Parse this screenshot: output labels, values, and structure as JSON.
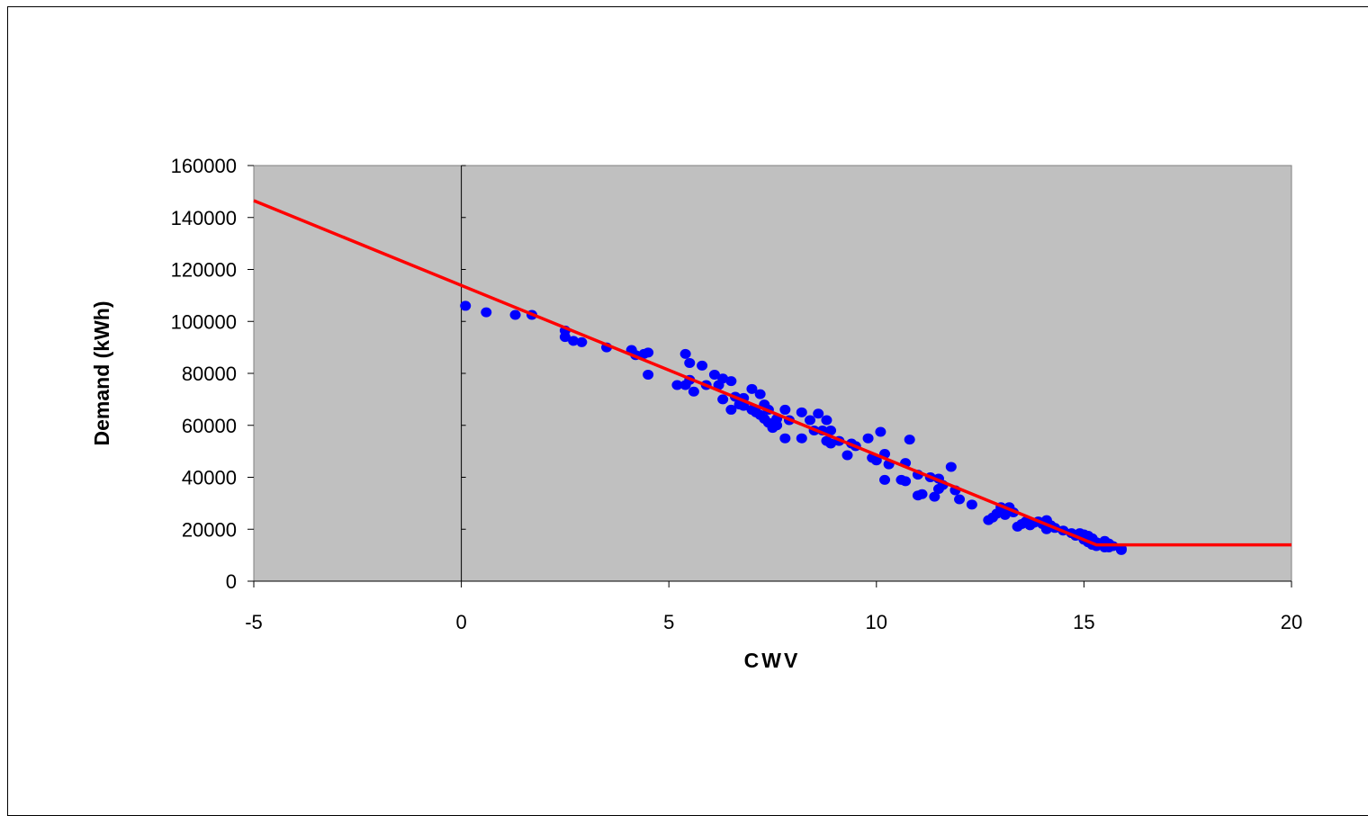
{
  "chart_data": {
    "type": "scatter",
    "xlabel": "CWV",
    "ylabel": "Demand (kWh)",
    "xlim": [
      -5,
      20
    ],
    "ylim": [
      0,
      160000
    ],
    "x_ticks": [
      -5,
      0,
      5,
      10,
      15,
      20
    ],
    "y_ticks": [
      0,
      20000,
      40000,
      60000,
      80000,
      100000,
      120000,
      140000,
      160000
    ],
    "grid": false,
    "legend": "none",
    "colors": {
      "plot_background": "#c0c0c0",
      "points": "#0000ff",
      "fit_line": "#ff0000"
    },
    "series": [
      {
        "type": "scatter",
        "points": [
          [
            0.1,
            106000
          ],
          [
            0.6,
            103500
          ],
          [
            1.3,
            102500
          ],
          [
            1.7,
            102500
          ],
          [
            2.5,
            94000
          ],
          [
            2.5,
            96500
          ],
          [
            2.7,
            92500
          ],
          [
            2.9,
            92000
          ],
          [
            3.5,
            90000
          ],
          [
            4.1,
            89000
          ],
          [
            4.2,
            87000
          ],
          [
            4.4,
            87500
          ],
          [
            4.5,
            88000
          ],
          [
            4.5,
            79500
          ],
          [
            5.2,
            75500
          ],
          [
            5.4,
            75500
          ],
          [
            5.4,
            87500
          ],
          [
            5.5,
            84000
          ],
          [
            5.5,
            77500
          ],
          [
            5.6,
            73000
          ],
          [
            5.8,
            83000
          ],
          [
            5.9,
            75500
          ],
          [
            6.1,
            79500
          ],
          [
            6.2,
            75500
          ],
          [
            6.3,
            70000
          ],
          [
            6.3,
            78000
          ],
          [
            6.5,
            77000
          ],
          [
            6.5,
            66000
          ],
          [
            6.6,
            71000
          ],
          [
            6.7,
            68000
          ],
          [
            6.8,
            70500
          ],
          [
            6.8,
            67500
          ],
          [
            7.0,
            74000
          ],
          [
            7.0,
            66000
          ],
          [
            7.1,
            65000
          ],
          [
            7.2,
            72000
          ],
          [
            7.2,
            64000
          ],
          [
            7.3,
            68000
          ],
          [
            7.3,
            62500
          ],
          [
            7.4,
            66000
          ],
          [
            7.4,
            61000
          ],
          [
            7.5,
            59000
          ],
          [
            7.6,
            62500
          ],
          [
            7.6,
            60000
          ],
          [
            7.8,
            66000
          ],
          [
            7.8,
            55000
          ],
          [
            7.9,
            62000
          ],
          [
            8.2,
            55000
          ],
          [
            8.2,
            65000
          ],
          [
            8.4,
            62000
          ],
          [
            8.5,
            58000
          ],
          [
            8.6,
            64500
          ],
          [
            8.7,
            58000
          ],
          [
            8.8,
            62000
          ],
          [
            8.8,
            54000
          ],
          [
            8.9,
            53000
          ],
          [
            8.9,
            58000
          ],
          [
            9.1,
            54000
          ],
          [
            9.3,
            48500
          ],
          [
            9.4,
            53000
          ],
          [
            9.5,
            52000
          ],
          [
            9.8,
            55000
          ],
          [
            9.9,
            47500
          ],
          [
            10.0,
            46500
          ],
          [
            10.1,
            57500
          ],
          [
            10.2,
            49000
          ],
          [
            10.2,
            39000
          ],
          [
            10.3,
            45000
          ],
          [
            10.6,
            39000
          ],
          [
            10.7,
            45500
          ],
          [
            10.7,
            38500
          ],
          [
            10.8,
            54500
          ],
          [
            11.0,
            41000
          ],
          [
            11.0,
            33000
          ],
          [
            11.1,
            33500
          ],
          [
            11.3,
            40000
          ],
          [
            11.4,
            32500
          ],
          [
            11.5,
            39500
          ],
          [
            11.5,
            35500
          ],
          [
            11.6,
            37000
          ],
          [
            11.8,
            44000
          ],
          [
            11.9,
            35000
          ],
          [
            12.0,
            31500
          ],
          [
            12.3,
            29500
          ],
          [
            12.7,
            23500
          ],
          [
            12.8,
            24500
          ],
          [
            12.9,
            26000
          ],
          [
            13.0,
            27000
          ],
          [
            13.0,
            28500
          ],
          [
            13.1,
            25500
          ],
          [
            13.2,
            28500
          ],
          [
            13.3,
            26500
          ],
          [
            13.4,
            21000
          ],
          [
            13.5,
            22000
          ],
          [
            13.6,
            23000
          ],
          [
            13.7,
            21500
          ],
          [
            13.8,
            22500
          ],
          [
            13.9,
            23000
          ],
          [
            14.0,
            22000
          ],
          [
            14.1,
            23500
          ],
          [
            14.1,
            20000
          ],
          [
            14.2,
            21500
          ],
          [
            14.3,
            20500
          ],
          [
            14.5,
            19500
          ],
          [
            14.7,
            18500
          ],
          [
            14.8,
            17500
          ],
          [
            14.9,
            18500
          ],
          [
            15.0,
            17000
          ],
          [
            15.0,
            18000
          ],
          [
            15.0,
            16000
          ],
          [
            15.1,
            17500
          ],
          [
            15.1,
            15000
          ],
          [
            15.2,
            14000
          ],
          [
            15.2,
            16500
          ],
          [
            15.3,
            15000
          ],
          [
            15.3,
            13500
          ],
          [
            15.4,
            14000
          ],
          [
            15.5,
            15500
          ],
          [
            15.5,
            13000
          ],
          [
            15.6,
            14500
          ],
          [
            15.6,
            13000
          ],
          [
            15.7,
            13500
          ],
          [
            15.9,
            12500
          ],
          [
            15.9,
            12000
          ]
        ]
      },
      {
        "type": "line",
        "points": [
          [
            -5,
            146500
          ],
          [
            15.3,
            14000
          ],
          [
            20,
            14000
          ]
        ]
      }
    ]
  }
}
